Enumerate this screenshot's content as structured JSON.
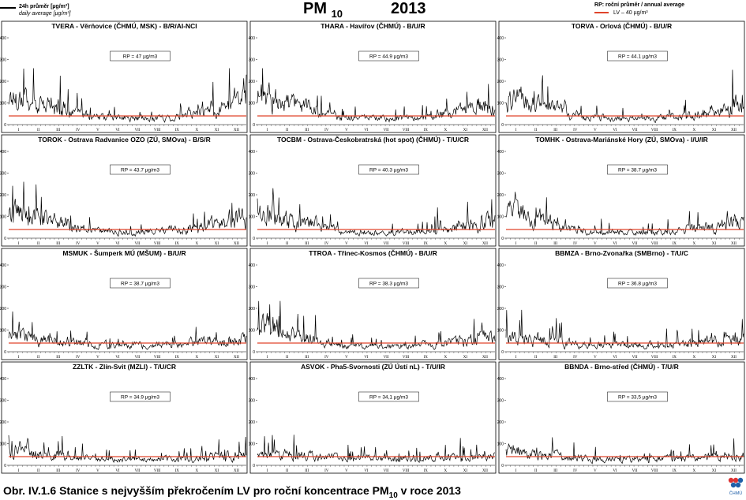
{
  "header": {
    "legend_series_label": "24h průměr [µg/m³]",
    "legend_series_label_en": "daily average [µg/m³]",
    "legend_rp_label": "RP: roční průměr / annual average",
    "legend_lv_label": "LV – 40 µg/m³",
    "title_main": "PM",
    "title_sub": "10",
    "title_year": "2013"
  },
  "caption": {
    "prefix": "Obr. IV.1.6  Stanice s nejvyšším překročením LV pro roční koncentrace PM",
    "sub": "10",
    "suffix": " v roce 2013"
  },
  "logo_text": "ČHMÚ",
  "colors": {
    "series": "#000000",
    "limit": "#e0442b"
  },
  "chart_data": [
    {
      "type": "line",
      "title": "TVERA - Věrňovice (ČHMÚ, MSK) - B/R/AI-NCI",
      "annotation": "RP = 47 µg/m3",
      "limit_value": 40,
      "ylim": [
        0,
        400
      ],
      "yticks": [
        0,
        100,
        200,
        300,
        400
      ],
      "months": [
        "I",
        "II",
        "III",
        "IV",
        "V",
        "VI",
        "VII",
        "VIII",
        "IX",
        "X",
        "XI",
        "XII"
      ],
      "monthly_mean": [
        115,
        78,
        72,
        45,
        30,
        28,
        26,
        28,
        32,
        50,
        68,
        105
      ]
    },
    {
      "type": "line",
      "title": "THARA - Havířov (ČHMÚ) - B/U/R",
      "annotation": "RP = 44.9 µg/m3",
      "limit_value": 40,
      "ylim": [
        0,
        400
      ],
      "yticks": [
        0,
        100,
        200,
        300,
        400
      ],
      "months": [
        "I",
        "II",
        "III",
        "IV",
        "V",
        "VI",
        "VII",
        "VIII",
        "IX",
        "X",
        "XI",
        "XII"
      ],
      "monthly_mean": [
        120,
        85,
        70,
        42,
        28,
        26,
        24,
        26,
        30,
        45,
        60,
        80
      ]
    },
    {
      "type": "line",
      "title": "TORVA - Orlová (ČHMÚ) - B/U/R",
      "annotation": "RP = 44.1 µg/m3",
      "limit_value": 40,
      "ylim": [
        0,
        400
      ],
      "yticks": [
        0,
        100,
        200,
        300,
        400
      ],
      "months": [
        "I",
        "II",
        "III",
        "IV",
        "V",
        "VI",
        "VII",
        "VIII",
        "IX",
        "X",
        "XI",
        "XII"
      ],
      "monthly_mean": [
        115,
        80,
        68,
        42,
        28,
        27,
        25,
        27,
        32,
        46,
        58,
        82
      ]
    },
    {
      "type": "line",
      "title": "TOROK - Ostrava Radvanice OZO (ZÚ, SMOva) - B/S/R",
      "annotation": "RP = 43.7 µg/m3",
      "limit_value": 40,
      "ylim": [
        0,
        400
      ],
      "yticks": [
        0,
        100,
        200,
        300,
        400
      ],
      "months": [
        "I",
        "II",
        "III",
        "IV",
        "V",
        "VI",
        "VII",
        "VIII",
        "IX",
        "X",
        "XI",
        "XII"
      ],
      "monthly_mean": [
        110,
        82,
        66,
        42,
        30,
        28,
        26,
        28,
        32,
        45,
        60,
        82
      ]
    },
    {
      "type": "line",
      "title": "TOCBM - Ostrava-Českobratrská (hot spot) (ČHMÚ) - T/U/CR",
      "annotation": "RP = 40.3 µg/m3",
      "limit_value": 40,
      "ylim": [
        0,
        400
      ],
      "yticks": [
        0,
        100,
        200,
        300,
        400
      ],
      "months": [
        "I",
        "II",
        "III",
        "IV",
        "V",
        "VI",
        "VII",
        "VIII",
        "IX",
        "X",
        "XI",
        "XII"
      ],
      "monthly_mean": [
        100,
        76,
        60,
        40,
        28,
        26,
        24,
        25,
        30,
        42,
        56,
        72
      ]
    },
    {
      "type": "line",
      "title": "TOMHK - Ostrava-Mariánské Hory (ZÚ, SMOva) - I/U/IR",
      "annotation": "RP = 38.7 µg/m3",
      "limit_value": 40,
      "ylim": [
        0,
        400
      ],
      "yticks": [
        0,
        100,
        200,
        300,
        400
      ],
      "months": [
        "I",
        "II",
        "III",
        "IV",
        "V",
        "VI",
        "VII",
        "VIII",
        "IX",
        "X",
        "XI",
        "XII"
      ],
      "monthly_mean": [
        98,
        72,
        58,
        38,
        27,
        25,
        24,
        25,
        29,
        40,
        52,
        70
      ]
    },
    {
      "type": "line",
      "title": "MSMUK - Šumperk MÚ (MŠUM) - B/U/R",
      "annotation": "RP = 38.7 µg/m3",
      "limit_value": 40,
      "ylim": [
        0,
        400
      ],
      "yticks": [
        0,
        100,
        200,
        300,
        400
      ],
      "months": [
        "I",
        "II",
        "III",
        "IV",
        "V",
        "VI",
        "VII",
        "VIII",
        "IX",
        "X",
        "XI",
        "XII"
      ],
      "monthly_mean": [
        62,
        50,
        46,
        38,
        30,
        28,
        27,
        30,
        32,
        38,
        44,
        52
      ]
    },
    {
      "type": "line",
      "title": "TTROA - Třinec-Kosmos (ČHMÚ) - B/U/R",
      "annotation": "RP = 38.3 µg/m3",
      "limit_value": 40,
      "ylim": [
        0,
        400
      ],
      "yticks": [
        0,
        100,
        200,
        300,
        400
      ],
      "months": [
        "I",
        "II",
        "III",
        "IV",
        "V",
        "VI",
        "VII",
        "VIII",
        "IX",
        "X",
        "XI",
        "XII"
      ],
      "monthly_mean": [
        105,
        72,
        58,
        36,
        25,
        24,
        22,
        24,
        28,
        38,
        50,
        62
      ]
    },
    {
      "type": "line",
      "title": "BBMZA - Brno-Zvonařka (SMBrno) - T/U/C",
      "annotation": "RP = 36.8 µg/m3",
      "limit_value": 40,
      "ylim": [
        0,
        400
      ],
      "yticks": [
        0,
        100,
        200,
        300,
        400
      ],
      "months": [
        "I",
        "II",
        "III",
        "IV",
        "V",
        "VI",
        "VII",
        "VIII",
        "IX",
        "X",
        "XI",
        "XII"
      ],
      "monthly_mean": [
        60,
        52,
        46,
        36,
        30,
        30,
        28,
        30,
        32,
        40,
        46,
        50
      ]
    },
    {
      "type": "line",
      "title": "ZZLTK - Zlín-Svit (MZLI) - T/U/CR",
      "annotation": "RP = 34.9 µg/m3",
      "limit_value": 40,
      "ylim": [
        0,
        400
      ],
      "yticks": [
        0,
        100,
        200,
        300,
        400
      ],
      "months": [
        "I",
        "II",
        "III",
        "IV",
        "V",
        "VI",
        "VII",
        "VIII",
        "IX",
        "X",
        "XI",
        "XII"
      ],
      "monthly_mean": [
        70,
        48,
        42,
        32,
        25,
        24,
        23,
        25,
        28,
        32,
        38,
        44
      ]
    },
    {
      "type": "line",
      "title": "ASVOK - Pha5-Svornosti (ZÚ Ústí nL) - T/U/IR",
      "annotation": "RP = 34,1 µg/m3",
      "limit_value": 40,
      "ylim": [
        0,
        400
      ],
      "yticks": [
        0,
        100,
        200,
        300,
        400
      ],
      "months": [
        "I",
        "II",
        "III",
        "IV",
        "V",
        "VI",
        "VII",
        "VIII",
        "IX",
        "X",
        "XI",
        "XII"
      ],
      "monthly_mean": [
        42,
        44,
        40,
        34,
        30,
        28,
        28,
        28,
        30,
        34,
        38,
        40
      ]
    },
    {
      "type": "line",
      "title": "BBNDA - Brno-střed (ČHMÚ) - T/U/R",
      "annotation": "RP = 33,5 µg/m3",
      "limit_value": 40,
      "ylim": [
        0,
        400
      ],
      "yticks": [
        0,
        100,
        200,
        300,
        400
      ],
      "months": [
        "I",
        "II",
        "III",
        "IV",
        "V",
        "VI",
        "VII",
        "VIII",
        "IX",
        "X",
        "XI",
        "XII"
      ],
      "monthly_mean": [
        62,
        46,
        40,
        32,
        27,
        26,
        25,
        26,
        28,
        32,
        38,
        44
      ]
    }
  ]
}
